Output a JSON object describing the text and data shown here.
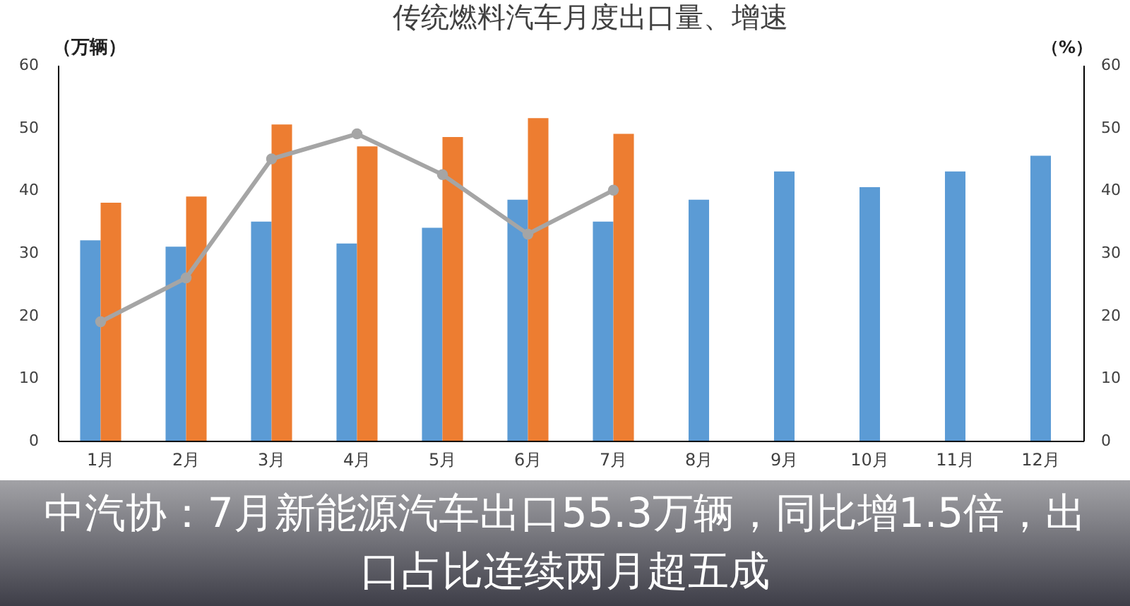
{
  "chart_data": {
    "type": "bar",
    "title": "传统燃料汽车月度出口量、增速",
    "ylabel": "（万辆）",
    "y2label": "（%）",
    "categories": [
      "1月",
      "2月",
      "3月",
      "4月",
      "5月",
      "6月",
      "7月",
      "8月",
      "9月",
      "10月",
      "11月",
      "12月"
    ],
    "series": [
      {
        "color": "#5b9bd5",
        "values": [
          32,
          31,
          35,
          31.5,
          34,
          38.5,
          35,
          38.5,
          43,
          40.5,
          43,
          45.5
        ]
      },
      {
        "color": "#ed7d31",
        "values": [
          38,
          39,
          50.5,
          47,
          48.5,
          51.5,
          49,
          null,
          null,
          null,
          null,
          null
        ]
      },
      {
        "type": "line",
        "axis": "y2",
        "color": "#a5a5a5",
        "values": [
          19,
          26,
          45,
          49,
          42.5,
          33,
          40,
          null,
          null,
          null,
          null,
          null
        ]
      }
    ],
    "ylim": [
      0,
      60
    ],
    "yticks": [
      0,
      10,
      20,
      30,
      40,
      50,
      60
    ],
    "y2lim": [
      0,
      60
    ],
    "y2ticks": [
      0,
      10,
      20,
      30,
      40,
      50,
      60
    ],
    "marker": "circle",
    "line_style": "solid",
    "grid": false,
    "annotations": [
      "中汽协：7月新能源汽车出口55.3万辆，同比增1.5倍，出口占比连续两月超五成"
    ]
  }
}
